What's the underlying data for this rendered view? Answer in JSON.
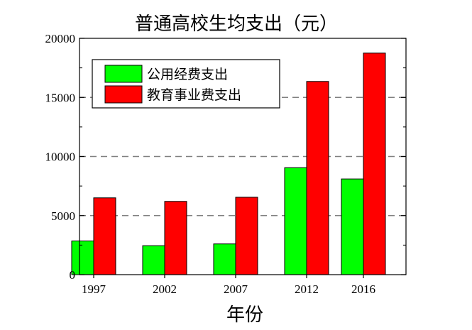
{
  "chart_data": {
    "type": "bar",
    "title": "普通高校生均支出（元）",
    "xlabel": "年份",
    "ylabel": "",
    "categories": [
      "1997",
      "2002",
      "2007",
      "2012",
      "2016"
    ],
    "x_positions": [
      1997,
      2002,
      2007,
      2012,
      2016
    ],
    "series": [
      {
        "name": "公用经费支出",
        "color": "#00ff00",
        "values": [
          2850,
          2450,
          2600,
          9050,
          8100
        ]
      },
      {
        "name": "教育事业费支出",
        "color": "#ff0000",
        "values": [
          6500,
          6200,
          6550,
          16350,
          18750
        ]
      }
    ],
    "ylim": [
      0,
      20000
    ],
    "yticks": [
      "0",
      "5000",
      "10000",
      "15000",
      "20000"
    ],
    "ytick_values": [
      0,
      5000,
      10000,
      15000,
      20000
    ],
    "xlim": [
      1996,
      2019
    ],
    "grid": "horizontal dashed",
    "legend_position": "top-left"
  }
}
